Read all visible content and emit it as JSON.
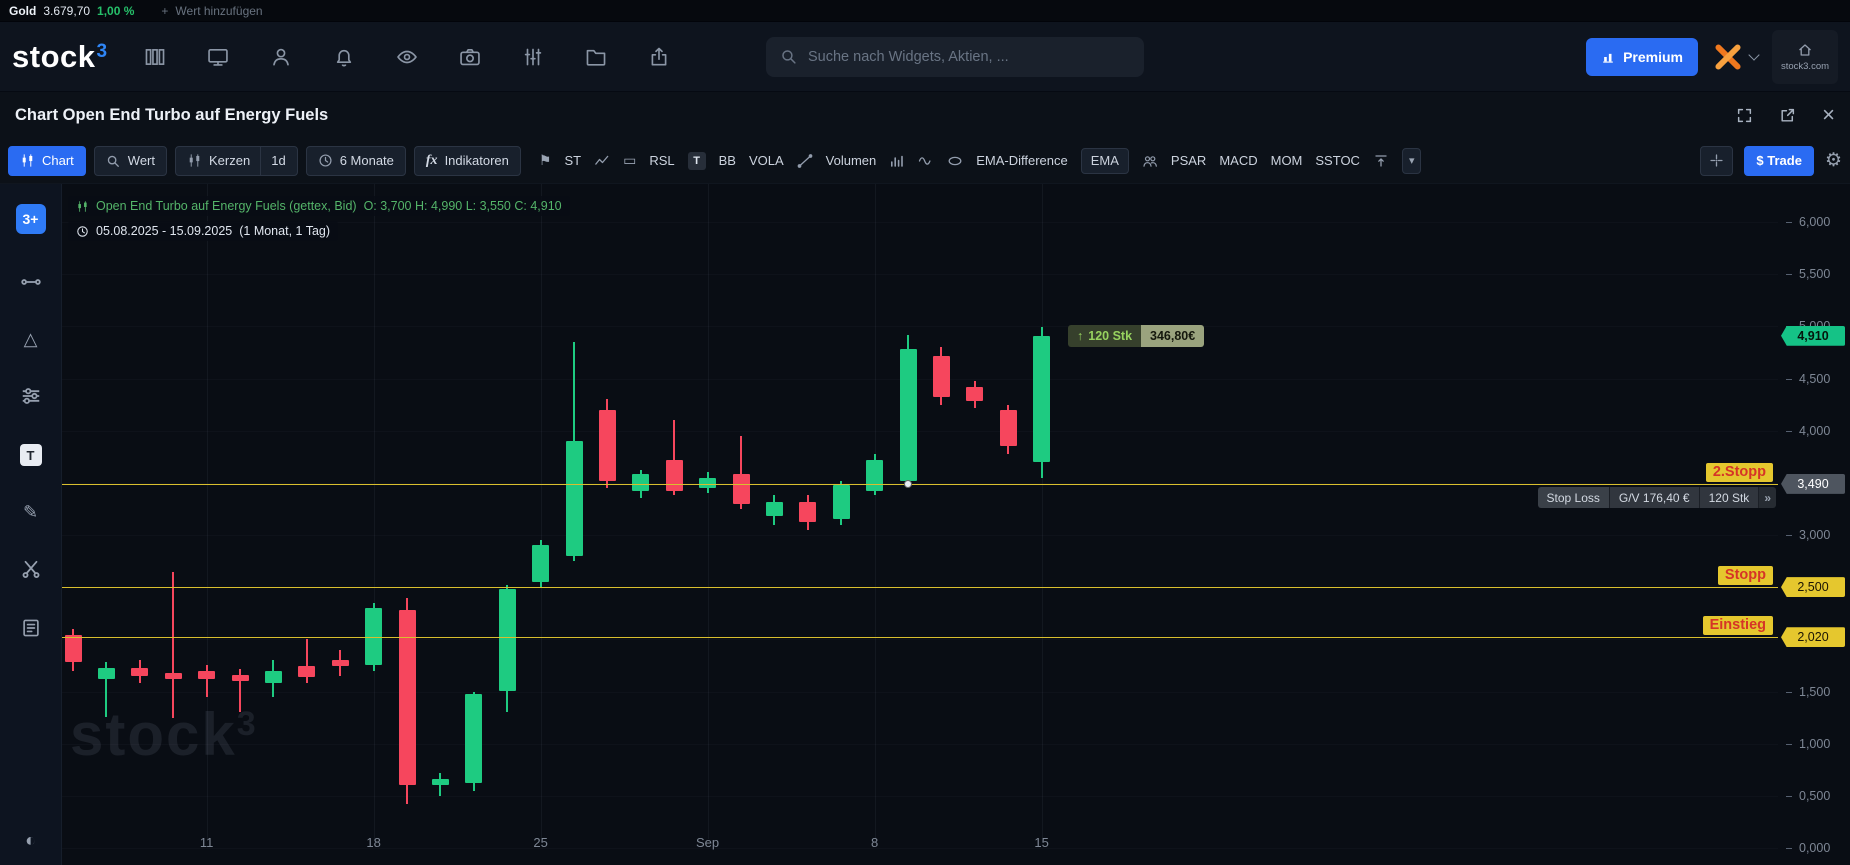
{
  "colors": {
    "accent_blue": "#2a6bf2",
    "candle_up": "#1ecb81",
    "candle_down": "#f6465d",
    "level_yellow": "#e5c72e",
    "change_green": "#26c06a"
  },
  "ticker_bar": {
    "symbol": "Gold",
    "price": "3.679,70",
    "change": "1,00 %",
    "add_label": "Wert hinzufügen"
  },
  "header": {
    "logo_text": "stock",
    "logo_sup": "3",
    "search_placeholder": "Suche nach Widgets, Aktien, ...",
    "premium_label": "Premium",
    "site_label": "stock3.com"
  },
  "title_bar": {
    "title": "Chart Open End Turbo auf Energy Fuels"
  },
  "toolbar": {
    "chart": "Chart",
    "wert": "Wert",
    "kerzen": "Kerzen",
    "interval": "1d",
    "range": "6 Monate",
    "fx": "fx",
    "indikatoren": "Indikatoren",
    "st": "ST",
    "rsl": "RSL",
    "t": "T",
    "bb": "BB",
    "vola": "VOLA",
    "volumen": "Volumen",
    "ema_difference": "EMA-Difference",
    "ema": "EMA",
    "psar": "PSAR",
    "macd": "MACD",
    "mom": "MOM",
    "sstoc": "SSTOC",
    "trade": "$ Trade"
  },
  "left_rail": {
    "logo_tile": "3+",
    "text_tool": "T"
  },
  "legend": {
    "instrument": "Open End Turbo auf Energy Fuels (gettex, Bid)",
    "ohlc": "O: 3,700  H: 4,990  L: 3,550  C: 4,910",
    "range": "05.08.2025 - 15.09.2025",
    "range_detail": "(1 Monat, 1 Tag)"
  },
  "position_tag": {
    "arrow": "↑",
    "qty": "120 Stk",
    "value": "346,80€"
  },
  "stoploss_tag": {
    "label": "Stop Loss",
    "gv": "G/V 176,40 €",
    "qty": "120 Stk",
    "chevron": "»"
  },
  "watermark": {
    "text": "stock",
    "sup": "3"
  },
  "icons": {
    "plus": "+",
    "triangle": "△",
    "pencil": "✎",
    "contrast": "◐",
    "flag": "⚑",
    "rect": "▭",
    "chevron_down": "▾",
    "gear": "⚙"
  },
  "chart_data": {
    "type": "candlestick",
    "title": "Open End Turbo auf Energy Fuels (gettex, Bid)",
    "interval": "1d",
    "date_range": "05.08.2025 - 15.09.2025 (1 Monat, 1 Tag)",
    "ylim": [
      0,
      6
    ],
    "y_ticks": [
      "6,000",
      "5,500",
      "5,000",
      "4,500",
      "4,000",
      "3,500",
      "3,000",
      "2,500",
      "2,000",
      "1,500",
      "1,000",
      "0,500",
      "0,000"
    ],
    "x_labels": [
      {
        "label": "11",
        "candle_index": 4
      },
      {
        "label": "18",
        "candle_index": 9
      },
      {
        "label": "25",
        "candle_index": 14
      },
      {
        "label": "Sep",
        "candle_index": 19
      },
      {
        "label": "8",
        "candle_index": 24
      },
      {
        "label": "15",
        "candle_index": 29
      }
    ],
    "last_price": {
      "value": 4.91,
      "label": "4,910"
    },
    "levels": [
      {
        "name": "2.Stopp",
        "price": 3.49,
        "tag": "3,490",
        "tag_style": "gray"
      },
      {
        "name": "Stopp",
        "price": 2.5,
        "tag": "2,500",
        "tag_style": "yellow"
      },
      {
        "name": "Einstieg",
        "price": 2.02,
        "tag": "2,020",
        "tag_style": "yellow"
      }
    ],
    "order_anchor": {
      "candle_index": 25,
      "price": 3.49
    },
    "ohlc_columns": [
      "open",
      "high",
      "low",
      "close"
    ],
    "candles_ohlc": [
      [
        2.04,
        2.1,
        1.7,
        1.78
      ],
      [
        1.62,
        1.78,
        1.26,
        1.73
      ],
      [
        1.73,
        1.8,
        1.58,
        1.65
      ],
      [
        1.68,
        2.65,
        1.25,
        1.62
      ],
      [
        1.7,
        1.75,
        1.45,
        1.62
      ],
      [
        1.66,
        1.72,
        1.3,
        1.6
      ],
      [
        1.58,
        1.8,
        1.45,
        1.7
      ],
      [
        1.74,
        2.0,
        1.58,
        1.64
      ],
      [
        1.8,
        1.9,
        1.65,
        1.74
      ],
      [
        1.75,
        2.35,
        1.7,
        2.3
      ],
      [
        2.28,
        2.4,
        0.42,
        0.6
      ],
      [
        0.6,
        0.72,
        0.5,
        0.66
      ],
      [
        0.62,
        1.5,
        0.55,
        1.48
      ],
      [
        1.5,
        2.52,
        1.3,
        2.48
      ],
      [
        2.55,
        2.95,
        2.5,
        2.9
      ],
      [
        2.8,
        4.85,
        2.75,
        3.9
      ],
      [
        4.2,
        4.3,
        3.45,
        3.52
      ],
      [
        3.42,
        3.62,
        3.35,
        3.58
      ],
      [
        3.72,
        4.1,
        3.38,
        3.42
      ],
      [
        3.45,
        3.6,
        3.4,
        3.55
      ],
      [
        3.58,
        3.95,
        3.25,
        3.3
      ],
      [
        3.18,
        3.38,
        3.1,
        3.32
      ],
      [
        3.32,
        3.38,
        3.05,
        3.12
      ],
      [
        3.15,
        3.52,
        3.1,
        3.48
      ],
      [
        3.42,
        3.78,
        3.38,
        3.72
      ],
      [
        3.52,
        4.92,
        3.48,
        4.78
      ],
      [
        4.72,
        4.8,
        4.25,
        4.32
      ],
      [
        4.42,
        4.48,
        4.22,
        4.28
      ],
      [
        4.2,
        4.25,
        3.78,
        3.85
      ],
      [
        3.7,
        4.99,
        3.55,
        4.91
      ]
    ]
  }
}
